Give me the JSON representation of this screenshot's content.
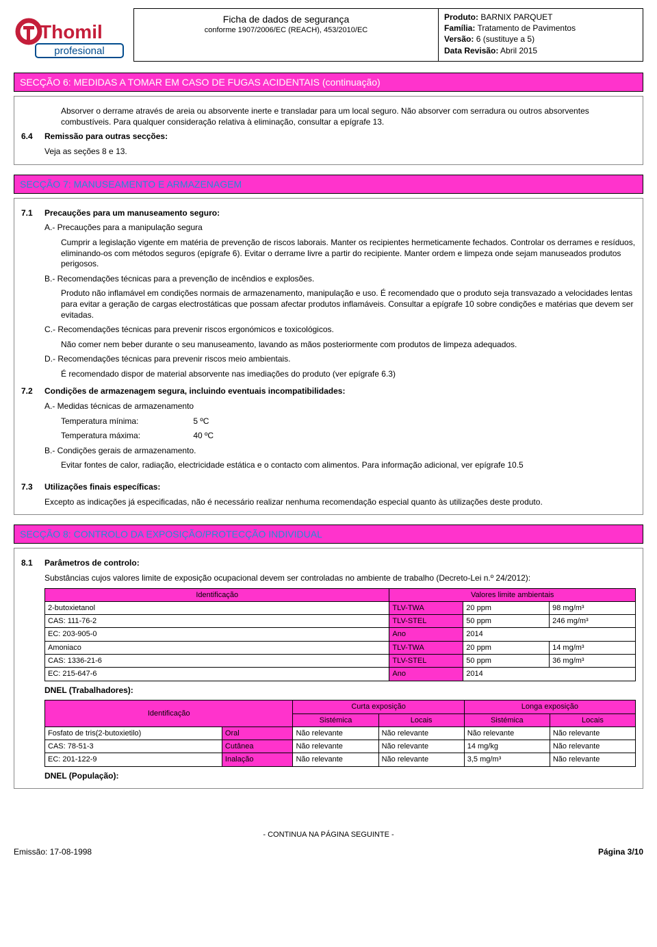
{
  "header": {
    "sheet_title": "Ficha de dados de segurança",
    "regulation": "conforme 1907/2006/EC (REACH), 453/2010/EC",
    "product_label": "Produto:",
    "product": "BARNIX PARQUET",
    "family_label": "Família:",
    "family": "Tratamento de Pavimentos",
    "version_label": "Versão:",
    "version": "6 (sustituye a 5)",
    "revision_label": "Data Revisão:",
    "revision": "Abril 2015"
  },
  "logo": {
    "brand": "Thomil",
    "sub": "profesional",
    "brand_color": "#c41e3a",
    "sub_color": "#004b8d"
  },
  "section6": {
    "title": "SECÇÃO 6: MEDIDAS A TOMAR EM CASO DE FUGAS ACIDENTAIS (continuação)",
    "body1": "Absorver o derrame através de areia ou absorvente inerte e transladar para um local seguro. Não absorver com serradura ou outros absorventes combustíveis. Para qualquer consideração relativa à eliminação, consultar a epígrafe 13.",
    "num64": "6.4",
    "title64": "Remissão para outras secções:",
    "body64": "Veja as seções 8 e 13."
  },
  "section7": {
    "title": "SECÇÃO 7: MANUSEAMENTO E ARMAZENAGEM",
    "num71": "7.1",
    "title71": "Precauções para um manuseamento seguro:",
    "a_title": "A.- Precauções para a manipulação segura",
    "a_body": "Cumprir a legislação vigente em matéria de prevenção de riscos laborais. Manter os recipientes hermeticamente fechados. Controlar os derrames e resíduos, eliminando-os com métodos seguros (epígrafe 6). Evitar o derrame livre a partir do recipiente. Manter ordem e limpeza onde sejam manuseados produtos perigosos.",
    "b_title": "B.- Recomendações técnicas para a prevenção de incêndios e explosões.",
    "b_body": "Produto não inflamável em condições normais de armazenamento, manipulação e uso. É recomendado que o produto seja transvazado a velocidades lentas para evitar a geração de cargas electrostáticas que possam afectar produtos inflamáveis. Consultar a epígrafe 10 sobre condições e matérias que devem ser evitadas.",
    "c_title": "C.- Recomendações técnicas para prevenir riscos ergonómicos e toxicológicos.",
    "c_body": "Não comer nem beber durante o seu manuseamento, lavando as mãos posteriormente com produtos de limpeza adequados.",
    "d_title": "D.- Recomendações técnicas para prevenir riscos meio ambientais.",
    "d_body": "É recomendado dispor de material absorvente nas imediações do produto (ver epígrafe 6.3)",
    "num72": "7.2",
    "title72": "Condições de armazenagem segura, incluindo eventuais incompatibilidades:",
    "a72": "A.- Medidas técnicas de armazenamento",
    "temp_min_lbl": "Temperatura mínima:",
    "temp_min": "5 ºC",
    "temp_max_lbl": "Temperatura máxima:",
    "temp_max": "40 ºC",
    "b72": "B.- Condições gerais de armazenamento.",
    "b72_body": "Evitar fontes de calor, radiação, electricidade estática e o contacto com alimentos. Para informação adicional, ver epígrafe 10.5",
    "num73": "7.3",
    "title73": "Utilizações finais específicas:",
    "body73": "Excepto as indicações já especificadas, não é necessário realizar nenhuma recomendação especial quanto às utilizações deste produto."
  },
  "section8": {
    "title": "SECÇÃO 8: CONTROLO DA EXPOSIÇÃO/PROTECÇÃO INDIVIDUAL",
    "num81": "8.1",
    "title81": "Parâmetros de controlo:",
    "intro": "Substâncias cujos valores limite de exposição ocupacional devem ser controladas no ambiente de trabalho (Decreto-Lei n.º 24/2012):",
    "table1": {
      "head_id": "Identificação",
      "head_val": "Valores limite ambientais",
      "rows": [
        {
          "id": "2-butoxietanol",
          "k": "TLV-TWA",
          "v1": "20 ppm",
          "v2": "98 mg/m³"
        },
        {
          "id": "CAS: 111-76-2",
          "k": "TLV-STEL",
          "v1": "50 ppm",
          "v2": "246 mg/m³"
        },
        {
          "id": "EC: 203-905-0",
          "k": "Ano",
          "v1": "2014",
          "v2": ""
        },
        {
          "id": "Amoniaco",
          "k": "TLV-TWA",
          "v1": "20 ppm",
          "v2": "14 mg/m³"
        },
        {
          "id": "CAS: 1336-21-6",
          "k": "TLV-STEL",
          "v1": "50 ppm",
          "v2": "36 mg/m³"
        },
        {
          "id": "EC: 215-647-6",
          "k": "Ano",
          "v1": "2014",
          "v2": ""
        }
      ]
    },
    "dnel_workers": "DNEL (Trabalhadores):",
    "table2": {
      "head_id": "Identificação",
      "head_short": "Curta exposição",
      "head_long": "Longa exposição",
      "sub_sist": "Sistémica",
      "sub_loc": "Locais",
      "rows": [
        {
          "id": "Fosfato de tris(2-butoxietilo)",
          "route": "Oral",
          "a": "Não relevante",
          "b": "Não relevante",
          "c": "Não relevante",
          "d": "Não relevante"
        },
        {
          "id": "CAS: 78-51-3",
          "route": "Cutânea",
          "a": "Não relevante",
          "b": "Não relevante",
          "c": "14 mg/kg",
          "d": "Não relevante"
        },
        {
          "id": "EC: 201-122-9",
          "route": "Inalação",
          "a": "Não relevante",
          "b": "Não relevante",
          "c": "3,5 mg/m³",
          "d": "Não relevante"
        }
      ]
    },
    "dnel_pop": "DNEL (População):"
  },
  "footer": {
    "continue": "- CONTINUA NA PÁGINA SEGUINTE -",
    "emission_label": "Emissão:",
    "emission": "17-08-1998",
    "page_label": "Página",
    "page": "3/10"
  },
  "colors": {
    "magenta": "#ff33cc",
    "blue_title": "#1f8dd6"
  }
}
